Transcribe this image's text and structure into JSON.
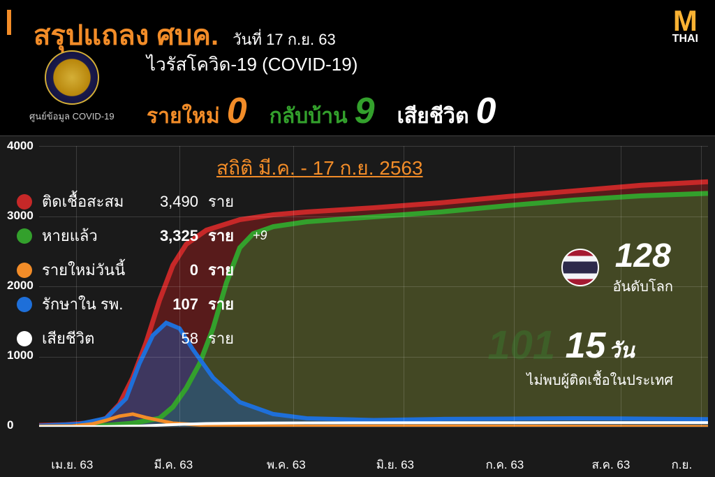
{
  "header": {
    "main_title": "สรุปแถลง ศบค.",
    "main_title_color": "#f28c28",
    "date_text": "วันที่ 17 ก.ย. 63",
    "date_color": "#ffffff",
    "covid_title": "ไวรัสโควิด-19 (COVID-19)",
    "seal_label": "ศูนย์ข้อมูล COVID-19",
    "logo": {
      "top": "M",
      "top_color": "#f9b233",
      "bottom": "THAI"
    },
    "stats": [
      {
        "label": "รายใหม่",
        "value": "0",
        "color": "#f28c28"
      },
      {
        "label": "กลับบ้าน",
        "value": "9",
        "color": "#33a02c"
      },
      {
        "label": "เสียชีวิต",
        "value": "0",
        "color": "#ffffff"
      }
    ]
  },
  "chart": {
    "title": "สถิติ มี.ค. - 17 ก.ย. 2563",
    "title_color": "#f28c28",
    "type": "area",
    "background": "#1a1a1a",
    "grid_color": "rgba(255,255,255,0.15)",
    "ylim": [
      0,
      4000
    ],
    "yticks": [
      0,
      1000,
      2000,
      3000,
      4000
    ],
    "xtick_labels": [
      "เม.ย. 63",
      "มี.ค. 63",
      "พ.ค. 63",
      "มิ.ย. 63",
      "ก.ค. 63",
      "ส.ค. 63",
      "ก.ย."
    ],
    "xtick_positions": [
      0.055,
      0.21,
      0.38,
      0.545,
      0.71,
      0.87,
      0.99
    ],
    "series": {
      "confirmed": {
        "color": "#c62828",
        "fill": "rgba(140,30,30,0.55)",
        "points": [
          [
            0,
            20
          ],
          [
            0.04,
            30
          ],
          [
            0.08,
            60
          ],
          [
            0.1,
            120
          ],
          [
            0.12,
            320
          ],
          [
            0.14,
            700
          ],
          [
            0.16,
            1200
          ],
          [
            0.18,
            1800
          ],
          [
            0.2,
            2300
          ],
          [
            0.22,
            2600
          ],
          [
            0.25,
            2800
          ],
          [
            0.3,
            2950
          ],
          [
            0.35,
            3020
          ],
          [
            0.4,
            3060
          ],
          [
            0.5,
            3120
          ],
          [
            0.6,
            3190
          ],
          [
            0.7,
            3280
          ],
          [
            0.8,
            3360
          ],
          [
            0.9,
            3440
          ],
          [
            1.0,
            3490
          ]
        ]
      },
      "recovered": {
        "color": "#33a02c",
        "fill": "rgba(51,110,43,0.55)",
        "points": [
          [
            0,
            5
          ],
          [
            0.06,
            10
          ],
          [
            0.1,
            20
          ],
          [
            0.14,
            50
          ],
          [
            0.18,
            120
          ],
          [
            0.2,
            280
          ],
          [
            0.22,
            550
          ],
          [
            0.24,
            900
          ],
          [
            0.26,
            1400
          ],
          [
            0.28,
            2050
          ],
          [
            0.3,
            2550
          ],
          [
            0.32,
            2750
          ],
          [
            0.35,
            2850
          ],
          [
            0.4,
            2920
          ],
          [
            0.5,
            2990
          ],
          [
            0.6,
            3060
          ],
          [
            0.7,
            3150
          ],
          [
            0.8,
            3230
          ],
          [
            0.9,
            3290
          ],
          [
            1.0,
            3325
          ]
        ]
      },
      "hospitalized": {
        "color": "#1e6fd9",
        "fill": "rgba(30,90,180,0.45)",
        "points": [
          [
            0,
            15
          ],
          [
            0.06,
            40
          ],
          [
            0.1,
            120
          ],
          [
            0.13,
            400
          ],
          [
            0.15,
            900
          ],
          [
            0.17,
            1300
          ],
          [
            0.19,
            1480
          ],
          [
            0.21,
            1400
          ],
          [
            0.23,
            1100
          ],
          [
            0.26,
            700
          ],
          [
            0.3,
            350
          ],
          [
            0.35,
            180
          ],
          [
            0.4,
            120
          ],
          [
            0.5,
            95
          ],
          [
            0.6,
            110
          ],
          [
            0.7,
            115
          ],
          [
            0.8,
            120
          ],
          [
            0.9,
            115
          ],
          [
            1.0,
            107
          ]
        ]
      },
      "new": {
        "color": "#f28c28",
        "points": [
          [
            0,
            5
          ],
          [
            0.05,
            10
          ],
          [
            0.08,
            40
          ],
          [
            0.1,
            90
          ],
          [
            0.12,
            150
          ],
          [
            0.14,
            180
          ],
          [
            0.16,
            130
          ],
          [
            0.18,
            90
          ],
          [
            0.2,
            50
          ],
          [
            0.25,
            20
          ],
          [
            0.3,
            10
          ],
          [
            0.4,
            5
          ],
          [
            0.6,
            8
          ],
          [
            0.8,
            4
          ],
          [
            1.0,
            0
          ]
        ]
      },
      "deaths": {
        "color": "#ffffff",
        "points": [
          [
            0,
            0
          ],
          [
            0.1,
            2
          ],
          [
            0.15,
            10
          ],
          [
            0.2,
            30
          ],
          [
            0.25,
            45
          ],
          [
            0.3,
            50
          ],
          [
            0.4,
            55
          ],
          [
            0.6,
            57
          ],
          [
            0.8,
            58
          ],
          [
            1.0,
            58
          ]
        ]
      }
    },
    "legend": [
      {
        "dot": "#c62828",
        "label": "ติดเชื้อสะสม",
        "value": "3,490",
        "unit": "ราย",
        "extra": ""
      },
      {
        "dot": "#33a02c",
        "label": "หายแล้ว",
        "value": "3,325",
        "unit": "ราย",
        "extra": "+9",
        "bold": true
      },
      {
        "dot": "#f28c28",
        "label": "รายใหม่วันนี้",
        "value": "0",
        "unit": "ราย",
        "extra": "",
        "bold": true
      },
      {
        "dot": "#1e6fd9",
        "label": "รักษาใน รพ.",
        "value": "107",
        "unit": "ราย",
        "extra": "",
        "bold": true
      },
      {
        "dot": "#ffffff",
        "label": "เสียชีวิต",
        "value": "58",
        "unit": "ราย",
        "extra": ""
      }
    ],
    "rank": {
      "number": "128",
      "label": "อันดับโลก"
    },
    "days": {
      "bg_number": "101",
      "number": "15",
      "unit": "วัน",
      "label": "ไม่พบผู้ติดเชื้อในประเทศ"
    }
  }
}
